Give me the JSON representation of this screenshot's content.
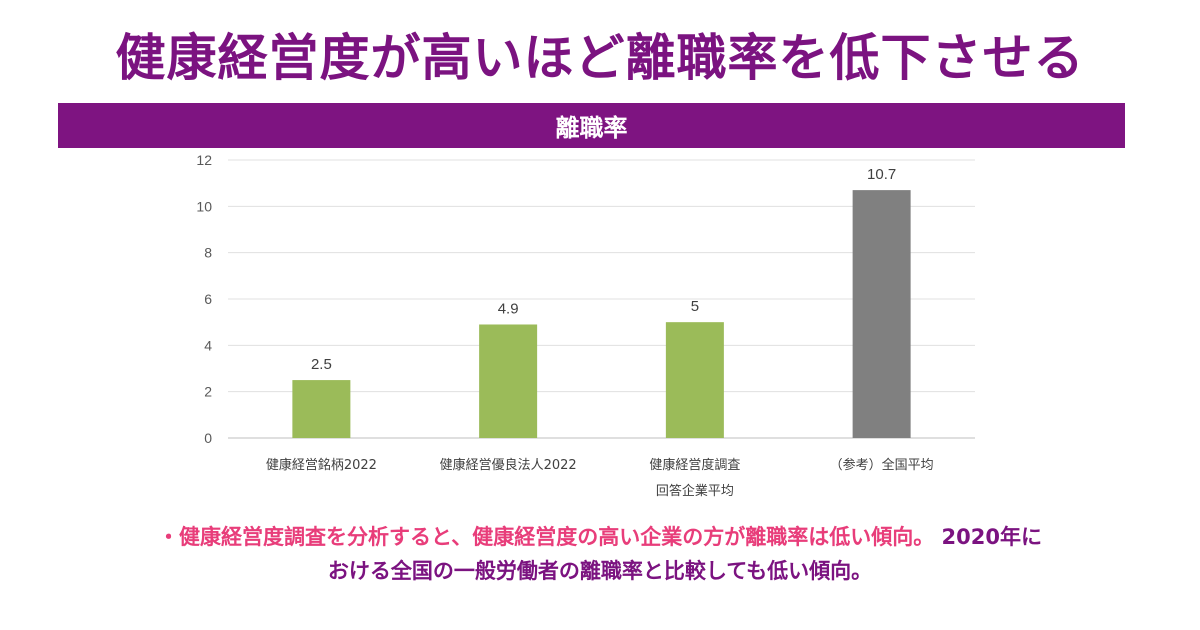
{
  "headline": "健康経営度が高いほど離職率を低下させる",
  "chart_data": {
    "type": "bar",
    "title": "離職率",
    "categories": [
      [
        "健康経営銘柄2022"
      ],
      [
        "健康経営優良法人2022"
      ],
      [
        "健康経営度調査",
        "回答企業平均"
      ],
      [
        "（参考）全国平均"
      ]
    ],
    "values": [
      2.5,
      4.9,
      5,
      10.7
    ],
    "data_labels": [
      "2.5",
      "4.9",
      "5",
      "10.7"
    ],
    "bar_colors": [
      "#9bbb59",
      "#9bbb59",
      "#9bbb59",
      "#808080"
    ],
    "y_ticks": [
      0,
      2,
      4,
      6,
      8,
      10,
      12
    ],
    "ylim": [
      0,
      12
    ],
    "grid": true,
    "xlabel": "",
    "ylabel": ""
  },
  "note": {
    "pink": "・健康経営度調査を分析すると、健康経営度の高い企業の方が離職率は低い傾向。",
    "purple_1": " 2020年に",
    "purple_2": "おける全国の一般労働者の離職率と比較しても低い傾向。"
  }
}
